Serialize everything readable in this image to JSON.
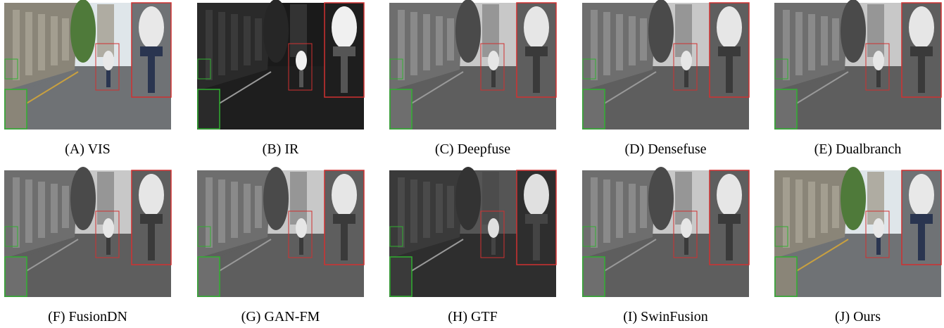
{
  "figure": {
    "panels": [
      {
        "caption": "(A) VIS"
      },
      {
        "caption": "(B) IR"
      },
      {
        "caption": "(C) Deepfuse"
      },
      {
        "caption": "(D) Densefuse"
      },
      {
        "caption": "(E) Dualbranch"
      },
      {
        "caption": "(F) FusionDN"
      },
      {
        "caption": "(G) GAN-FM"
      },
      {
        "caption": "(H) GTF"
      },
      {
        "caption": "(I) SwinFusion"
      },
      {
        "caption": "(J) Ours"
      }
    ]
  }
}
